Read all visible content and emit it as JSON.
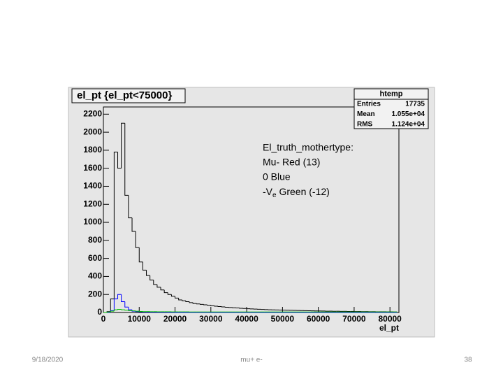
{
  "chart_data": {
    "type": "histogram",
    "title": "el_pt {el_pt<75000}",
    "x_label": "el_pt",
    "bins": [
      0,
      1000,
      2000,
      3000,
      4000,
      5000,
      6000,
      7000,
      8000,
      9000,
      10000,
      11000,
      12000,
      13000,
      14000,
      15000,
      16000,
      17000,
      18000,
      19000,
      20000,
      21000,
      22000,
      23000,
      24000,
      25000,
      26000,
      27000,
      28000,
      29000,
      30000,
      31000,
      32000,
      33000,
      34000,
      35000,
      36000,
      37000,
      38000,
      39000,
      40000,
      41000,
      42000,
      43000,
      44000,
      45000,
      46000,
      47000,
      48000,
      49000,
      50000,
      51000,
      52000,
      53000,
      54000,
      55000,
      56000,
      57000,
      58000,
      59000,
      60000,
      61000,
      62000,
      63000,
      64000,
      65000,
      66000,
      67000,
      68000,
      69000,
      70000,
      71000,
      72000,
      73000,
      74000,
      75000,
      76000,
      77000,
      78000,
      79000,
      80000,
      81000,
      82000
    ],
    "series": [
      {
        "color": "#000000",
        "values": [
          0,
          10,
          150,
          1780,
          1600,
          2100,
          1300,
          1050,
          900,
          720,
          560,
          470,
          410,
          360,
          310,
          280,
          250,
          220,
          200,
          180,
          160,
          140,
          130,
          120,
          110,
          100,
          95,
          90,
          85,
          80,
          75,
          70,
          66,
          62,
          58,
          55,
          52,
          50,
          47,
          45,
          42,
          40,
          38,
          36,
          34,
          32,
          30,
          29,
          28,
          27,
          26,
          25,
          24,
          23,
          22,
          21,
          20,
          19,
          18,
          17,
          17,
          16,
          15,
          15,
          14,
          14,
          13,
          13,
          12,
          12,
          11,
          11,
          10,
          10,
          9,
          9,
          8,
          8,
          8,
          7,
          7,
          6
        ]
      },
      {
        "color": "#0000ff",
        "values": [
          0,
          0,
          20,
          150,
          200,
          120,
          60,
          30,
          15,
          10,
          8,
          5,
          4,
          3,
          3,
          2,
          2,
          2,
          1,
          1,
          0,
          0,
          0,
          0,
          0,
          0,
          0,
          0,
          0,
          0,
          0,
          0,
          0,
          0,
          0,
          0,
          0,
          0,
          0,
          0,
          0,
          0,
          0,
          0,
          0,
          0,
          0,
          0,
          0,
          0,
          0,
          0,
          0,
          0,
          0,
          0,
          0,
          0,
          0,
          0,
          0,
          0,
          0,
          0,
          0,
          0,
          0,
          0,
          0,
          0,
          0,
          0,
          0,
          0,
          0,
          0,
          0,
          0,
          0,
          0,
          0,
          0
        ]
      },
      {
        "color": "#00bb00",
        "values": [
          0,
          5,
          15,
          30,
          35,
          30,
          25,
          20,
          18,
          15,
          12,
          10,
          10,
          9,
          9,
          8,
          8,
          8,
          8,
          7,
          7,
          7,
          7,
          7,
          6,
          6,
          6,
          6,
          6,
          6,
          6,
          6,
          6,
          6,
          6,
          6,
          6,
          6,
          6,
          6,
          6,
          6,
          6,
          6,
          6,
          6,
          6,
          6,
          6,
          6,
          6,
          6,
          6,
          6,
          6,
          6,
          6,
          6,
          6,
          6,
          6,
          6,
          6,
          6,
          6,
          6,
          6,
          6,
          6,
          6,
          6,
          6,
          6,
          6,
          6,
          6,
          6,
          6,
          6,
          6,
          6,
          6
        ]
      }
    ],
    "xlim": [
      0,
      82500
    ],
    "ylim": [
      0,
      2280
    ],
    "xticks": [
      0,
      10000,
      20000,
      30000,
      40000,
      50000,
      60000,
      70000,
      80000
    ],
    "yticks": [
      0,
      200,
      400,
      600,
      800,
      1000,
      1200,
      1400,
      1600,
      1800,
      2000,
      2200
    ],
    "stats": {
      "title": "htemp",
      "rows": [
        [
          "Entries",
          "17735"
        ],
        [
          "Mean",
          "1.055e+04"
        ],
        [
          "RMS",
          "1.124e+04"
        ]
      ]
    },
    "annotation": {
      "lines": [
        "El_truth_mothertype:",
        "Mu- Red (13)",
        "0 Blue"
      ],
      "last_line": [
        "-V",
        "e",
        " Green (-12)"
      ]
    }
  },
  "footer": {
    "date": "9/18/2020",
    "text": "mu+ e-",
    "page": "38"
  }
}
